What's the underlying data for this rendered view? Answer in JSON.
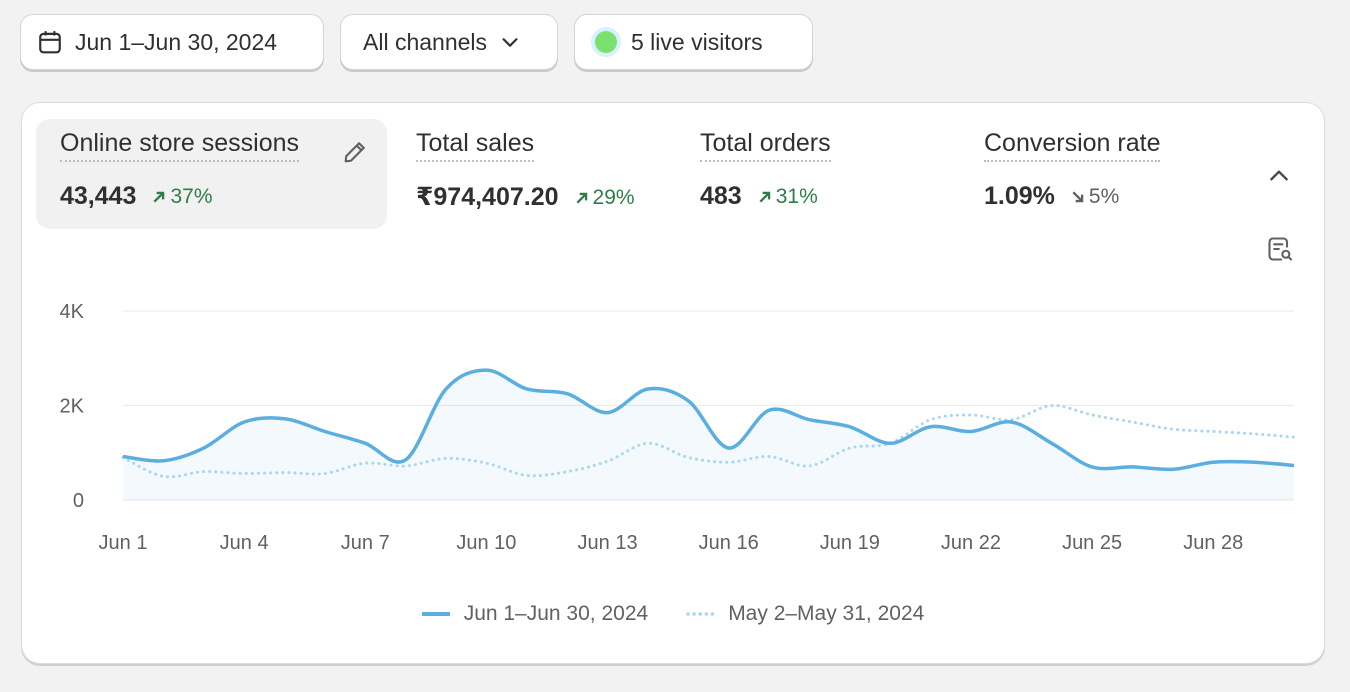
{
  "toolbar": {
    "date_label": "Jun 1–Jun 30, 2024",
    "channels_label": "All channels",
    "live_label": "5 live visitors"
  },
  "metrics": [
    {
      "title": "Online store sessions",
      "value": "43,443",
      "change": "37%",
      "direction": "up"
    },
    {
      "title": "Total sales",
      "value": "₹974,407.20",
      "change": "29%",
      "direction": "up"
    },
    {
      "title": "Total orders",
      "value": "483",
      "change": "31%",
      "direction": "up"
    },
    {
      "title": "Conversion rate",
      "value": "1.09%",
      "change": "5%",
      "direction": "down"
    }
  ],
  "colors": {
    "current": "#5aaee0",
    "previous": "#a9d6f0",
    "up": "#2f7d48",
    "live": "#7ce06f"
  },
  "icons": [
    "calendar-icon",
    "chevron-down-icon",
    "pencil-icon",
    "chevron-up-icon",
    "report-search-icon",
    "arrow-up-right-icon",
    "arrow-down-right-icon"
  ],
  "chart_data": {
    "type": "line",
    "x": [
      "Jun 1",
      "Jun 2",
      "Jun 3",
      "Jun 4",
      "Jun 5",
      "Jun 6",
      "Jun 7",
      "Jun 8",
      "Jun 9",
      "Jun 10",
      "Jun 11",
      "Jun 12",
      "Jun 13",
      "Jun 14",
      "Jun 15",
      "Jun 16",
      "Jun 17",
      "Jun 18",
      "Jun 19",
      "Jun 20",
      "Jun 21",
      "Jun 22",
      "Jun 23",
      "Jun 24",
      "Jun 25",
      "Jun 26",
      "Jun 27",
      "Jun 28",
      "Jun 29",
      "Jun 30"
    ],
    "tick_labels": [
      "Jun 1",
      "Jun 4",
      "Jun 7",
      "Jun 10",
      "Jun 13",
      "Jun 16",
      "Jun 19",
      "Jun 22",
      "Jun 25",
      "Jun 28"
    ],
    "y_ticks": [
      "0",
      "2K",
      "4K"
    ],
    "ylim": [
      0,
      4000
    ],
    "grid": true,
    "legend_position": "bottom-center",
    "series": [
      {
        "name": "Jun 1–Jun 30, 2024",
        "style": "solid",
        "values": [
          920,
          830,
          1100,
          1650,
          1720,
          1450,
          1200,
          850,
          2350,
          2750,
          2350,
          2250,
          1850,
          2350,
          2100,
          1100,
          1900,
          1700,
          1550,
          1200,
          1550,
          1450,
          1650,
          1200,
          700,
          700,
          650,
          800,
          800,
          730
        ]
      },
      {
        "name": "May 2–May 31, 2024",
        "style": "dotted",
        "values": [
          900,
          500,
          600,
          560,
          580,
          560,
          780,
          720,
          880,
          780,
          520,
          600,
          820,
          1200,
          900,
          800,
          920,
          720,
          1100,
          1200,
          1700,
          1800,
          1700,
          2000,
          1800,
          1650,
          1500,
          1450,
          1400,
          1330
        ]
      }
    ]
  }
}
